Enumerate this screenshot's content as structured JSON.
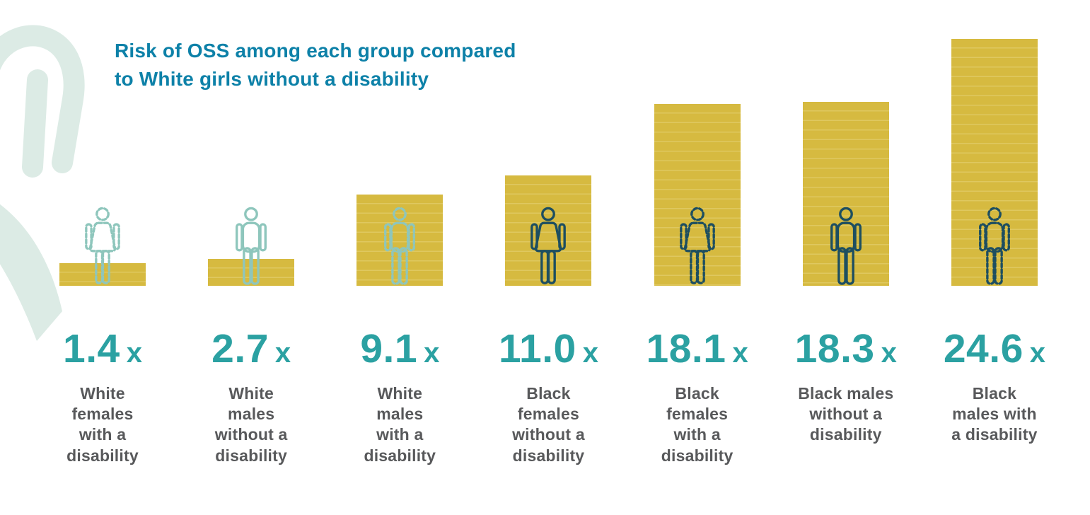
{
  "title": {
    "line1": "Risk of OSS among each group compared",
    "line2": "to White girls without a disability"
  },
  "chart_data": {
    "type": "bar",
    "title": "Risk of OSS among each group compared to White girls without a disability",
    "categories": [
      "White females with a disability",
      "White males without a disability",
      "White males with a disability",
      "Black females without a disability",
      "Black females with a disability",
      "Black males without a disability",
      "Black males with a disability"
    ],
    "values": [
      1.4,
      2.7,
      9.1,
      11.0,
      18.1,
      18.3,
      24.6
    ],
    "value_suffix": "x",
    "xlabel": "",
    "ylabel": "",
    "ylim": [
      0,
      25
    ],
    "grid": false,
    "legend": "none",
    "bar_color": "#d6ba40",
    "icon_style_note": "dashed person outline = with a disability, solid = without; light teal = White groups, dark teal = Black groups"
  },
  "groups": [
    {
      "value": "1.4",
      "suffix": "x",
      "label": "White\nfemales\nwith a\ndisability",
      "icon": {
        "name": "white-female-with-disability-icon",
        "gender": "female",
        "style": "dashed",
        "color": "#8ec6bc"
      }
    },
    {
      "value": "2.7",
      "suffix": "x",
      "label": "White\nmales\nwithout a\ndisability",
      "icon": {
        "name": "white-male-without-disability-icon",
        "gender": "male",
        "style": "solid",
        "color": "#8ec6bc"
      }
    },
    {
      "value": "9.1",
      "suffix": "x",
      "label": "White\nmales\nwith a\ndisability",
      "icon": {
        "name": "white-male-with-disability-icon",
        "gender": "male",
        "style": "dashed",
        "color": "#8ec6bc"
      }
    },
    {
      "value": "11.0",
      "suffix": "x",
      "label": "Black\nfemales\nwithout a\ndisability",
      "icon": {
        "name": "black-female-without-disability-icon",
        "gender": "female",
        "style": "solid",
        "color": "#1d4e60"
      }
    },
    {
      "value": "18.1",
      "suffix": "x",
      "label": "Black\nfemales\nwith a\ndisability",
      "icon": {
        "name": "black-female-with-disability-icon",
        "gender": "female",
        "style": "dashed",
        "color": "#1d4e60"
      }
    },
    {
      "value": "18.3",
      "suffix": "x",
      "label": "Black males\nwithout a\ndisability",
      "icon": {
        "name": "black-male-without-disability-icon",
        "gender": "male",
        "style": "solid",
        "color": "#1d4e60"
      }
    },
    {
      "value": "24.6",
      "suffix": "x",
      "label": "Black\nmales with\na disability",
      "icon": {
        "name": "black-male-with-disability-icon",
        "gender": "male",
        "style": "dashed",
        "color": "#1d4e60"
      }
    }
  ],
  "colors": {
    "bar": "#d6ba40",
    "bar_stripe": "#dfc860",
    "title": "#0d81a8",
    "value": "#2ba1a2",
    "label": "#58595b",
    "icon_light": "#8ec6bc",
    "icon_dark": "#1d4e60",
    "decor": "#dcebe5",
    "background": "#ffffff"
  }
}
